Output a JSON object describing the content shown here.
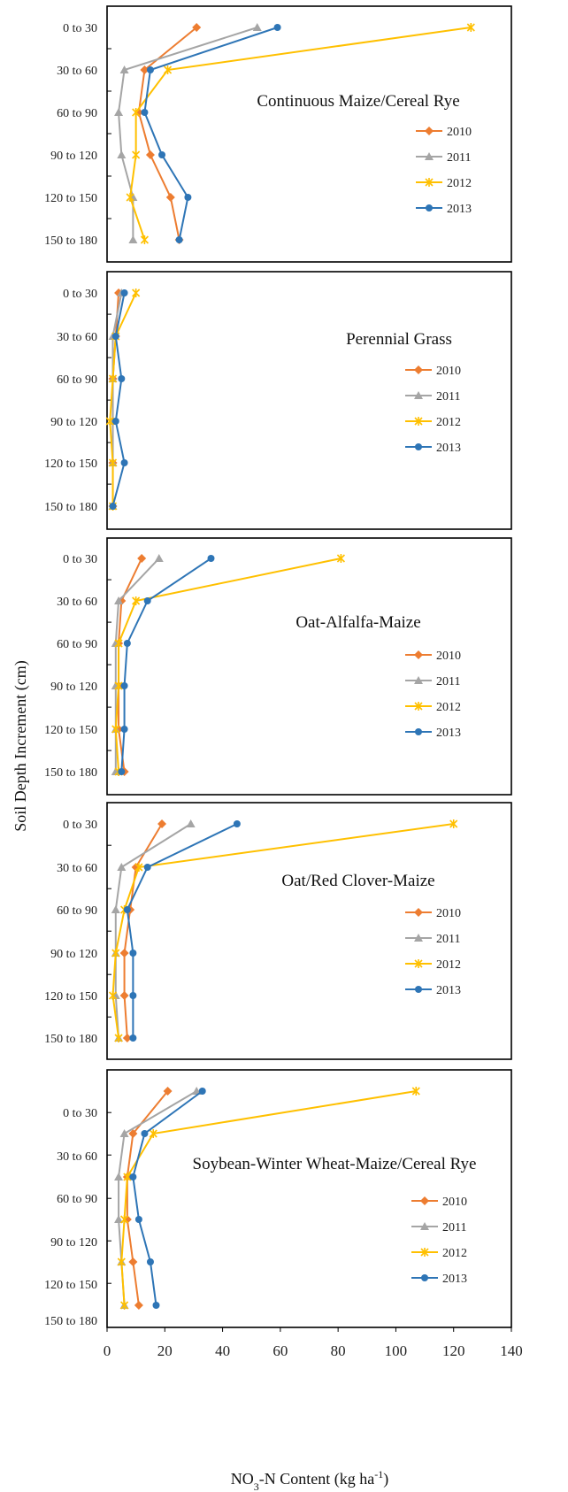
{
  "colors": {
    "2010": "#ED7D31",
    "2011": "#A5A5A5",
    "2012": "#FFC000",
    "2013": "#2E75B6"
  },
  "markers": {
    "2010": "diamond",
    "2011": "triangle",
    "2012": "star",
    "2013": "circle"
  },
  "chart_data": {
    "type": "line",
    "xlabel": "NO3-N Content (kg ha-1)",
    "xlabel_main": "NO",
    "xlabel_sub": "3",
    "xlabel_mid": "-N Content (kg ha",
    "xlabel_sup": "-1",
    "xlabel_end": ")",
    "ylabel": "Soil Depth Increment (cm)",
    "xlim": [
      0,
      140
    ],
    "xticks": [
      "0",
      "20",
      "40",
      "60",
      "80",
      "100",
      "120",
      "140"
    ],
    "xtick_values": [
      0,
      20,
      40,
      60,
      80,
      100,
      120,
      140
    ],
    "depths": [
      "0 to 30",
      "30 to 60",
      "60 to 90",
      "90 to 120",
      "120 to 150",
      "150 to 180"
    ],
    "panels": [
      {
        "title": "Continuous Maize/Cereal Rye",
        "series": [
          {
            "name": "2010",
            "values": [
              31,
              13,
              11,
              15,
              22,
              25
            ]
          },
          {
            "name": "2011",
            "values": [
              52,
              6,
              4,
              5,
              9,
              9
            ]
          },
          {
            "name": "2012",
            "values": [
              126,
              21,
              10,
              10,
              8,
              13
            ]
          },
          {
            "name": "2013",
            "values": [
              59,
              15,
              13,
              19,
              28,
              25
            ]
          }
        ]
      },
      {
        "title": "Perennial Grass",
        "series": [
          {
            "name": "2010",
            "values": [
              4,
              3,
              2,
              2,
              2,
              2
            ]
          },
          {
            "name": "2011",
            "values": [
              5,
              2,
              2,
              2,
              2,
              2
            ]
          },
          {
            "name": "2012",
            "values": [
              10,
              3,
              2,
              1,
              2,
              2
            ]
          },
          {
            "name": "2013",
            "values": [
              6,
              3,
              5,
              3,
              6,
              2
            ]
          }
        ]
      },
      {
        "title": "Oat-Alfalfa-Maize",
        "series": [
          {
            "name": "2010",
            "values": [
              12,
              5,
              4,
              4,
              4,
              6
            ]
          },
          {
            "name": "2011",
            "values": [
              18,
              4,
              3,
              3,
              3,
              3
            ]
          },
          {
            "name": "2012",
            "values": [
              81,
              10,
              4,
              4,
              3,
              4
            ]
          },
          {
            "name": "2013",
            "values": [
              36,
              14,
              7,
              6,
              6,
              5
            ]
          }
        ]
      },
      {
        "title": "Oat/Red Clover-Maize",
        "series": [
          {
            "name": "2010",
            "values": [
              19,
              10,
              8,
              6,
              6,
              7
            ]
          },
          {
            "name": "2011",
            "values": [
              29,
              5,
              3,
              3,
              3,
              4
            ]
          },
          {
            "name": "2012",
            "values": [
              120,
              11,
              6,
              3,
              2,
              4
            ]
          },
          {
            "name": "2013",
            "values": [
              45,
              14,
              7,
              9,
              9,
              9
            ]
          }
        ]
      },
      {
        "title": "Soybean-Winter Wheat-Maize/Cereal Rye",
        "series": [
          {
            "name": "2010",
            "values": [
              21,
              9,
              7,
              7,
              9,
              11
            ]
          },
          {
            "name": "2011",
            "values": [
              31,
              6,
              4,
              4,
              5,
              6
            ]
          },
          {
            "name": "2012",
            "values": [
              107,
              16,
              7,
              6,
              5,
              6
            ]
          },
          {
            "name": "2013",
            "values": [
              33,
              13,
              9,
              11,
              15,
              17
            ]
          }
        ]
      }
    ],
    "legend": [
      "2010",
      "2011",
      "2012",
      "2013"
    ],
    "grid": false,
    "legend_placement": "right, inside each panel"
  }
}
